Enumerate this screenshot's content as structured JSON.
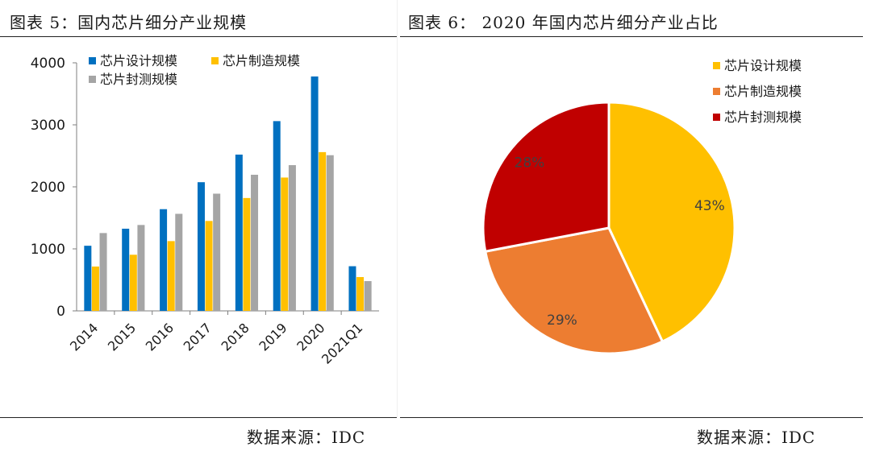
{
  "left_panel": {
    "title": "图表 5：国内芯片细分产业规模",
    "source": "数据来源：IDC"
  },
  "right_panel": {
    "title": "图表 6： 2020 年国内芯片细分产业占比",
    "source": "数据来源：IDC"
  },
  "chart_data": [
    {
      "type": "bar",
      "categories": [
        "2014",
        "2015",
        "2016",
        "2017",
        "2018",
        "2019",
        "2020",
        "2021Q1"
      ],
      "series": [
        {
          "name": "芯片设计规模",
          "color": "#0070c0",
          "values": [
            1050,
            1325,
            1640,
            2075,
            2520,
            3060,
            3780,
            720
          ]
        },
        {
          "name": "芯片制造规模",
          "color": "#ffc000",
          "values": [
            715,
            905,
            1125,
            1450,
            1820,
            2150,
            2560,
            545
          ]
        },
        {
          "name": "芯片封测规模",
          "color": "#a5a5a5",
          "values": [
            1255,
            1385,
            1565,
            1890,
            2195,
            2350,
            2510,
            480
          ]
        }
      ],
      "ylim": [
        0,
        4000
      ],
      "yticks": [
        "0",
        "1000",
        "2000",
        "3000",
        "4000"
      ],
      "legend_position": "top-left",
      "grid": false
    },
    {
      "type": "pie",
      "slices": [
        {
          "name": "芯片设计规模",
          "value": 43,
          "label": "43%",
          "color": "#ffc000"
        },
        {
          "name": "芯片制造规模",
          "value": 29,
          "label": "29%",
          "color": "#ed7d31"
        },
        {
          "name": "芯片封测规模",
          "value": 28,
          "label": "28%",
          "color": "#c00000"
        }
      ],
      "legend_position": "top-right"
    }
  ]
}
